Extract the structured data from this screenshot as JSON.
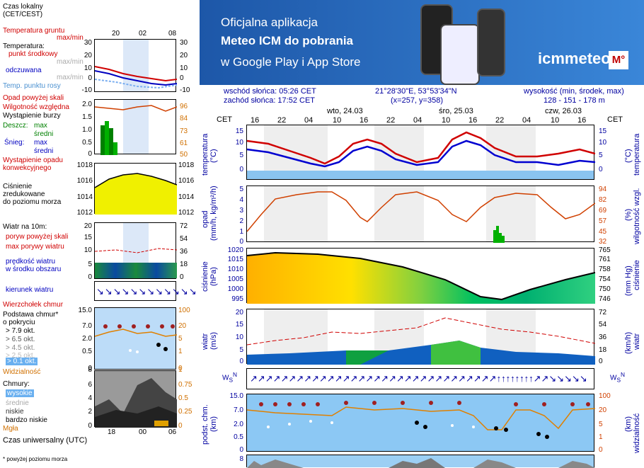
{
  "legend": {
    "local_time": "Czas lokalny\n(CET/CEST)",
    "hours_top": [
      "20",
      "02",
      "08"
    ],
    "soil_temp": "Temperatura gruntu",
    "max_min": "max/min",
    "temperature": "Temperatura:",
    "mid_point": "punkt środkowy",
    "max_min_lt": "max/min",
    "apparent": "odczuwana",
    "dew_point": "Temp. punktu rosy",
    "precip_above_scale": "Opad powyżej skali",
    "humidity": "Wilgotność względna",
    "storm": "Wystąpienie burzy",
    "rain": "Deszcz:",
    "max": "max",
    "mean": "średni",
    "snow": "Śnieg:",
    "convective": "Wystąpienie opadu\nkonwekcyjnego",
    "pressure": "Ciśnienie\nzredukowane\ndo poziomu morza",
    "wind10": "Wiatr na 10m:",
    "gust_above": "poryw powyżej skali",
    "max_gust": "max porywy wiatru",
    "wind_speed": "prędkość wiatru\nw środku obszaru",
    "wind_dir": "kierunek wiatru",
    "cloud_top": "Wierzchołek chmur",
    "cloud_base": "Podstawa chmur*\no pokryciu",
    "okt": [
      "> 7.9 okt.",
      "> 6.5 okt.",
      "> 4.5 okt.",
      "> 2.5 okt.",
      "> 0.1 okt."
    ],
    "visibility": "Widzialność",
    "clouds": "Chmury:",
    "high": "wysokie",
    "medium": "średnie",
    "low": "niskie",
    "very_low": "bardzo niskie",
    "fog": "Mgła",
    "utc": "Czas uniwersalny (UTC)",
    "hours_bottom": [
      "18",
      "00",
      "06"
    ],
    "footnote": "* powyżej poziomu morza"
  },
  "legend_axes": {
    "temp_l": [
      "30",
      "20",
      "10",
      "0",
      "-10"
    ],
    "temp_r": [
      "30",
      "20",
      "10",
      "0",
      "-10"
    ],
    "prec_l": [
      "2.0",
      "1.5",
      "1.0",
      "0.5",
      "0"
    ],
    "prec_r": [
      "96",
      "84",
      "73",
      "61",
      "50"
    ],
    "pres_l": [
      "1018",
      "1016",
      "1014",
      "1012"
    ],
    "pres_r": [
      "1018",
      "1016",
      "1014",
      "1012"
    ],
    "wind_l": [
      "20",
      "15",
      "10",
      "5",
      "0"
    ],
    "wind_r": [
      "72",
      "54",
      "36",
      "18",
      "0"
    ],
    "cb_l": [
      "15.0",
      "7.0",
      "2.0",
      "0.5",
      "0"
    ],
    "cb_r": [
      "100",
      "20",
      "5",
      "1",
      "0"
    ],
    "cl_l": [
      "8",
      "6",
      "4",
      "2",
      "0"
    ],
    "cl_r": [
      "1",
      "0.75",
      "0.5",
      "0.25",
      "0"
    ]
  },
  "banner": {
    "line1": "Oficjalna aplikacja",
    "line2": "Meteo ICM do pobrania",
    "line3": "w Google Play i App Store",
    "brand": "icmmeteo",
    "brand_badge": "M°"
  },
  "header": {
    "sunrise": "wschód słońca: 05:26 CET",
    "sunset": "zachód słońca: 17:52 CET",
    "coords": "21°28'30\"E, 53°53'34\"N",
    "grid": "(x=257,  y=358)",
    "height_lbl": "wysokość (min, środek, max)",
    "height_val": "128 - 151 - 178 m",
    "days": [
      "wto, 24.03",
      "śro, 25.03",
      "czw, 26.03"
    ],
    "cet": "CET",
    "hours": [
      "16",
      "22",
      "04",
      "10",
      "16",
      "22",
      "04",
      "10",
      "16",
      "22",
      "04",
      "10",
      "16"
    ]
  },
  "main_axes": {
    "temp_l": [
      "15",
      "10",
      "5",
      "0"
    ],
    "temp_r": [
      "15",
      "10",
      "5",
      "0"
    ],
    "prec_l": [
      "5",
      "4",
      "3",
      "2",
      "1",
      "0"
    ],
    "prec_r": [
      "94",
      "82",
      "69",
      "57",
      "45",
      "32"
    ],
    "pres_l": [
      "1020",
      "1015",
      "1010",
      "1005",
      "1000",
      "995"
    ],
    "pres_r": [
      "765",
      "761",
      "758",
      "754",
      "750",
      "746"
    ],
    "wind_l": [
      "20",
      "15",
      "10",
      "5",
      "0"
    ],
    "wind_r": [
      "72",
      "54",
      "36",
      "18",
      "0"
    ],
    "cb_l": [
      "15.0",
      "7.0",
      "2.0",
      "0.5",
      "0"
    ],
    "cb_r": [
      "100",
      "20",
      "5",
      "1",
      "0"
    ],
    "cl_l": [
      "8"
    ]
  },
  "main_titles": {
    "temp": "temperatura",
    "temp_u": "(°C)",
    "prec": "opad",
    "prec_u": "(mm/h, kg/m²/h)",
    "hum": "wilgotność wzgl.",
    "hum_u": "(%)",
    "pres": "ciśnienie",
    "pres_u": "(hPa)",
    "pres_u2": "(mm Hg)",
    "wind": "wiatr",
    "wind_u": "(m/s)",
    "wind_u2": "(km/h)",
    "cb": "podst. chm.",
    "cb_u": "(km)",
    "vis": "widzialność",
    "vis_u": "(km)"
  },
  "colors": {
    "red": "#d00000",
    "blue": "#0000c0",
    "precip_bar": "#00b000",
    "pressure_low": "#00a040",
    "pressure_high": "#ffcc00"
  }
}
